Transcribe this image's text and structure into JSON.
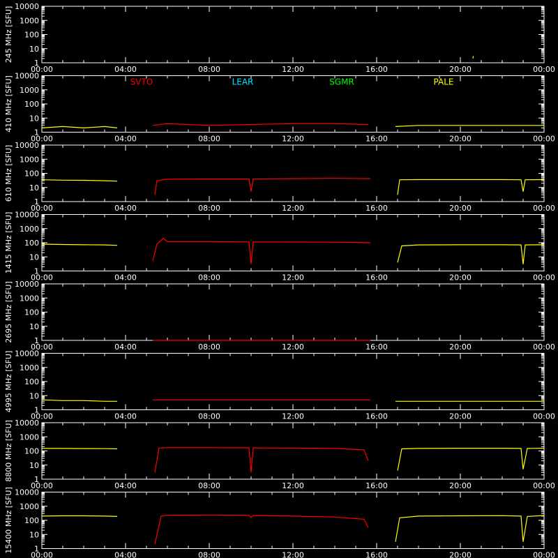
{
  "chart_data": {
    "type": "line",
    "x_ticks": [
      "00:00",
      "04:00",
      "08:00",
      "12:00",
      "16:00",
      "20:00",
      "00:00"
    ],
    "x_range_hours": [
      0,
      24
    ],
    "y_scale": "log",
    "ylim": [
      1,
      10000
    ],
    "y_ticks": [
      "10000",
      "1000",
      "100",
      "10",
      "1"
    ],
    "y_unit": "[SFU]",
    "stations": [
      {
        "name": "SVTO",
        "color": "#ff0000"
      },
      {
        "name": "LEAR",
        "color": "#00e8ff"
      },
      {
        "name": "SGMR",
        "color": "#00ff00"
      },
      {
        "name": "PALE",
        "color": "#ffff00"
      }
    ],
    "panels": [
      {
        "freq": "245 MHz",
        "series": [
          {
            "station": "PALE",
            "points": [
              [
                20.6,
                2
              ],
              [
                20.62,
                3
              ]
            ]
          }
        ]
      },
      {
        "freq": "410 MHz",
        "series": [
          {
            "station": "PALE",
            "points": [
              [
                0,
                2
              ],
              [
                1,
                2.5
              ],
              [
                2,
                2
              ],
              [
                3,
                2.5
              ],
              [
                3.6,
                2
              ]
            ]
          },
          {
            "station": "SVTO",
            "points": [
              [
                5.3,
                3
              ],
              [
                6,
                4
              ],
              [
                8,
                3
              ],
              [
                10,
                3.5
              ],
              [
                12,
                4
              ],
              [
                14,
                4
              ],
              [
                15.6,
                3.5
              ]
            ]
          },
          {
            "station": "PALE",
            "points": [
              [
                16.9,
                2.5
              ],
              [
                18,
                3
              ],
              [
                20,
                3
              ],
              [
                22,
                3
              ],
              [
                24,
                3
              ]
            ]
          }
        ]
      },
      {
        "freq": "610 MHz",
        "series": [
          {
            "station": "PALE",
            "points": [
              [
                0,
                35
              ],
              [
                1,
                33
              ],
              [
                2,
                32
              ],
              [
                3,
                30
              ],
              [
                3.6,
                28
              ]
            ]
          },
          {
            "station": "SVTO",
            "points": [
              [
                5.4,
                3
              ],
              [
                5.5,
                30
              ],
              [
                6,
                38
              ],
              [
                8,
                40
              ],
              [
                9.9,
                40
              ],
              [
                10,
                5
              ],
              [
                10.1,
                40
              ],
              [
                12,
                42
              ],
              [
                14,
                44
              ],
              [
                15.7,
                42
              ]
            ]
          },
          {
            "station": "PALE",
            "points": [
              [
                17,
                3
              ],
              [
                17.1,
                35
              ],
              [
                18,
                36
              ],
              [
                20,
                36
              ],
              [
                22,
                36
              ],
              [
                22.9,
                35
              ],
              [
                23,
                5
              ],
              [
                23.1,
                35
              ],
              [
                24,
                36
              ]
            ]
          }
        ]
      },
      {
        "freq": "1415 MHz",
        "series": [
          {
            "station": "PALE",
            "points": [
              [
                0,
                80
              ],
              [
                1,
                75
              ],
              [
                2,
                72
              ],
              [
                3,
                70
              ],
              [
                3.6,
                65
              ]
            ]
          },
          {
            "station": "SVTO",
            "points": [
              [
                5.3,
                5
              ],
              [
                5.5,
                80
              ],
              [
                5.8,
                200
              ],
              [
                6,
                120
              ],
              [
                8,
                120
              ],
              [
                9.9,
                115
              ],
              [
                10,
                3
              ],
              [
                10.1,
                115
              ],
              [
                12,
                112
              ],
              [
                14,
                110
              ],
              [
                15.7,
                100
              ]
            ]
          },
          {
            "station": "PALE",
            "points": [
              [
                17,
                4
              ],
              [
                17.2,
                60
              ],
              [
                18,
                70
              ],
              [
                20,
                72
              ],
              [
                22,
                72
              ],
              [
                22.9,
                70
              ],
              [
                23,
                3
              ],
              [
                23.1,
                70
              ],
              [
                24,
                72
              ]
            ]
          }
        ]
      },
      {
        "freq": "2695 MHz",
        "series": [
          {
            "station": "SVTO",
            "points": [
              [
                5.3,
                1
              ],
              [
                15.7,
                1
              ]
            ]
          }
        ]
      },
      {
        "freq": "4995 MHz",
        "series": [
          {
            "station": "PALE",
            "points": [
              [
                0,
                5
              ],
              [
                1,
                4.5
              ],
              [
                2,
                4.5
              ],
              [
                3,
                4
              ],
              [
                3.6,
                4
              ]
            ]
          },
          {
            "station": "SVTO",
            "points": [
              [
                5.3,
                5
              ],
              [
                8,
                5
              ],
              [
                10,
                5
              ],
              [
                12,
                5
              ],
              [
                14,
                5
              ],
              [
                15.7,
                5
              ]
            ]
          },
          {
            "station": "PALE",
            "points": [
              [
                16.9,
                4
              ],
              [
                18,
                4
              ],
              [
                20,
                4
              ],
              [
                22,
                4
              ],
              [
                24,
                4
              ]
            ]
          }
        ]
      },
      {
        "freq": "8800 MHz",
        "series": [
          {
            "station": "PALE",
            "points": [
              [
                0,
                150
              ],
              [
                1,
                150
              ],
              [
                2,
                148
              ],
              [
                3,
                145
              ],
              [
                3.6,
                140
              ]
            ]
          },
          {
            "station": "SVTO",
            "points": [
              [
                5.4,
                3
              ],
              [
                5.6,
                160
              ],
              [
                6,
                170
              ],
              [
                8,
                170
              ],
              [
                9.9,
                165
              ],
              [
                10,
                3
              ],
              [
                10.1,
                165
              ],
              [
                12,
                160
              ],
              [
                14,
                150
              ],
              [
                15.4,
                120
              ],
              [
                15.6,
                20
              ]
            ]
          },
          {
            "station": "PALE",
            "points": [
              [
                17,
                4
              ],
              [
                17.2,
                140
              ],
              [
                18,
                150
              ],
              [
                20,
                155
              ],
              [
                22,
                155
              ],
              [
                22.9,
                150
              ],
              [
                23,
                5
              ],
              [
                23.2,
                150
              ],
              [
                24,
                155
              ]
            ]
          }
        ]
      },
      {
        "freq": "15400 MHz",
        "series": [
          {
            "station": "PALE",
            "points": [
              [
                0,
                200
              ],
              [
                1,
                210
              ],
              [
                2,
                210
              ],
              [
                3,
                200
              ],
              [
                3.6,
                190
              ]
            ]
          },
          {
            "station": "SVTO",
            "points": [
              [
                5.4,
                2
              ],
              [
                5.7,
                200
              ],
              [
                6,
                230
              ],
              [
                8,
                240
              ],
              [
                9.9,
                230
              ],
              [
                10,
                160
              ],
              [
                10.1,
                220
              ],
              [
                12,
                200
              ],
              [
                14,
                170
              ],
              [
                15.4,
                120
              ],
              [
                15.6,
                30
              ]
            ]
          },
          {
            "station": "PALE",
            "points": [
              [
                16.9,
                3
              ],
              [
                17.1,
                150
              ],
              [
                18,
                200
              ],
              [
                20,
                210
              ],
              [
                22,
                215
              ],
              [
                22.9,
                200
              ],
              [
                23,
                3
              ],
              [
                23.2,
                190
              ],
              [
                24,
                220
              ]
            ]
          }
        ]
      }
    ]
  }
}
